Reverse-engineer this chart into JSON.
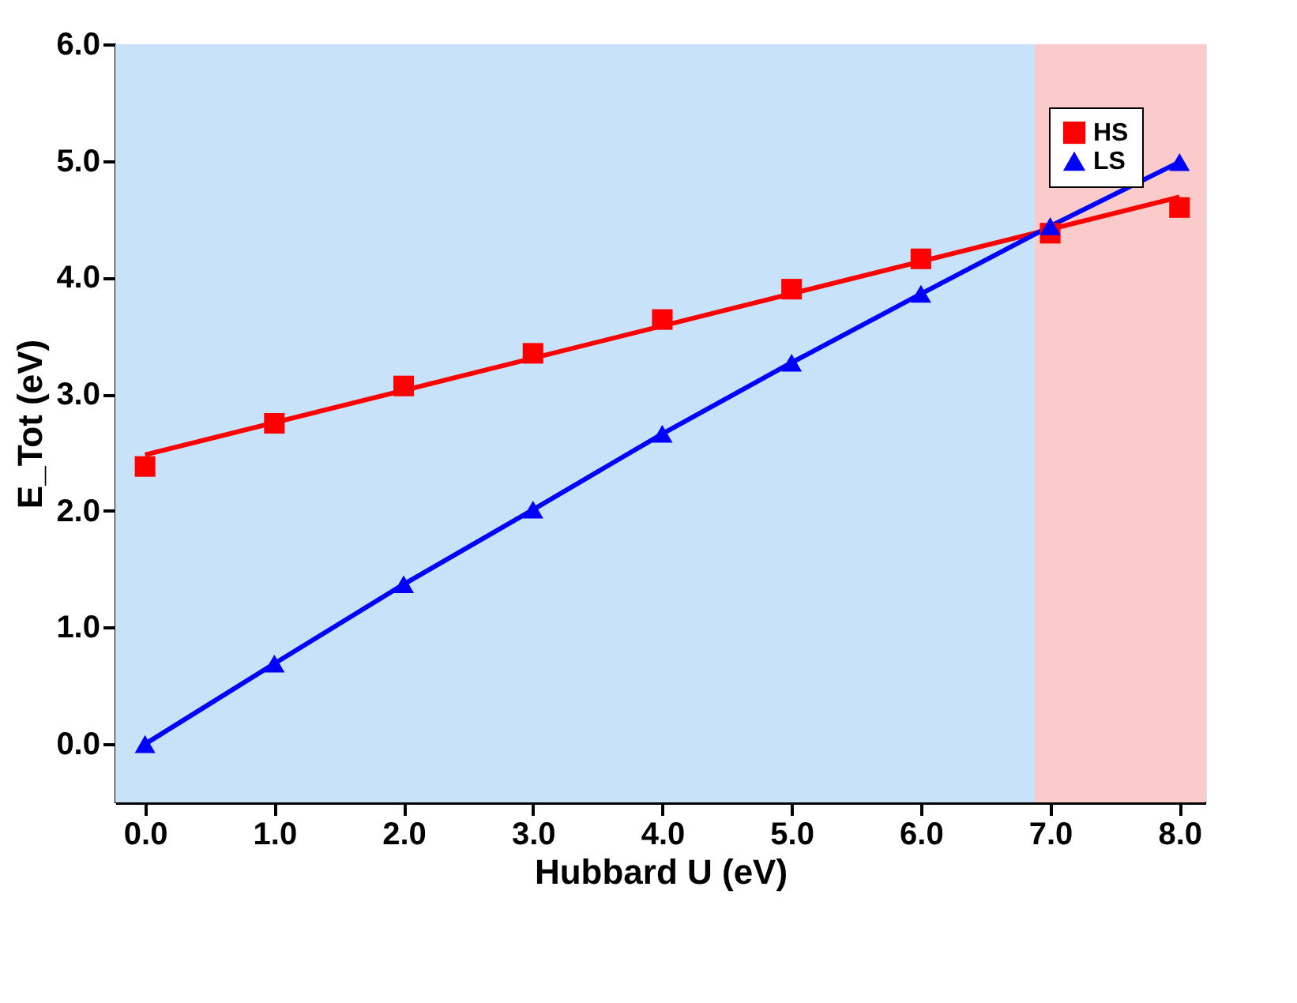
{
  "chart_data": {
    "type": "scatter",
    "xlabel": "Hubbard U (eV)",
    "ylabel": "E_Tot (eV)",
    "xlim": [
      -0.23,
      8.2
    ],
    "ylim": [
      -0.5,
      6.0
    ],
    "xticks": [
      {
        "value": 0,
        "label": "0.0"
      },
      {
        "value": 1,
        "label": "1.0"
      },
      {
        "value": 2,
        "label": "2.0"
      },
      {
        "value": 3,
        "label": "3.0"
      },
      {
        "value": 4,
        "label": "4.0"
      },
      {
        "value": 5,
        "label": "5.0"
      },
      {
        "value": 6,
        "label": "6.0"
      },
      {
        "value": 7,
        "label": "7.0"
      },
      {
        "value": 8,
        "label": "8.0"
      }
    ],
    "yticks": [
      {
        "value": 0,
        "label": "0.0"
      },
      {
        "value": 1,
        "label": "1.0"
      },
      {
        "value": 2,
        "label": "2.0"
      },
      {
        "value": 3,
        "label": "3.0"
      },
      {
        "value": 4,
        "label": "4.0"
      },
      {
        "value": 5,
        "label": "5.0"
      },
      {
        "value": 6,
        "label": "6.0"
      }
    ],
    "x": [
      0,
      1,
      2,
      3,
      4,
      5,
      6,
      7,
      8
    ],
    "series": [
      {
        "name": "HS",
        "color": "#ff0000",
        "marker": "square",
        "values": [
          2.38,
          2.75,
          3.07,
          3.35,
          3.64,
          3.9,
          4.16,
          4.38,
          4.6
        ]
      },
      {
        "name": "LS",
        "color": "#0000ff",
        "marker": "triangle",
        "values": [
          0.0,
          0.69,
          1.37,
          2.01,
          2.66,
          3.27,
          3.86,
          4.44,
          4.99
        ]
      },
      {
        "type": "line",
        "color": "#ff0000",
        "x": [
          0,
          8
        ],
        "values": [
          2.48,
          4.69
        ]
      },
      {
        "type": "line",
        "color": "#0000ff",
        "x": [
          0,
          1,
          2,
          3,
          4,
          5,
          6,
          7,
          8
        ],
        "values": [
          0.0,
          0.69,
          1.37,
          2.01,
          2.66,
          3.27,
          3.86,
          4.44,
          4.99
        ]
      }
    ],
    "bands": [
      {
        "axis": "x",
        "from": -0.23,
        "to": 6.88,
        "color": "#c8e2fa"
      },
      {
        "axis": "x",
        "from": 6.88,
        "to": 8.2,
        "color": "#fbcaca"
      }
    ],
    "legend": "top right"
  }
}
